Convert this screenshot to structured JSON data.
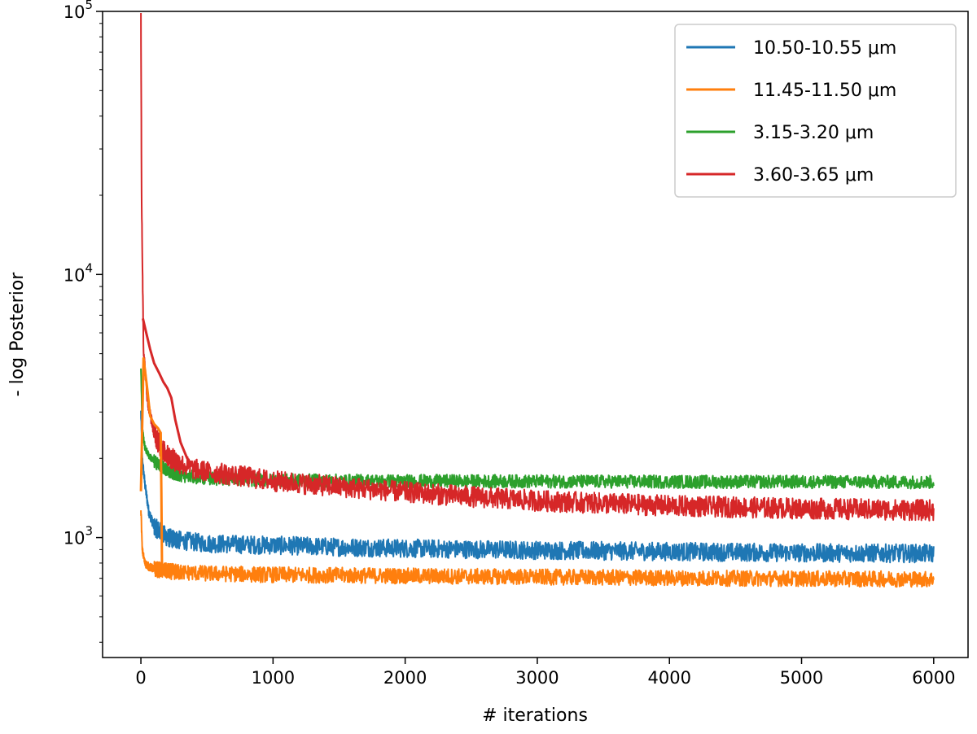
{
  "chart_data": {
    "type": "line",
    "xlabel": "# iterations",
    "ylabel": "- log Posterior",
    "xlim": [
      -290,
      6260
    ],
    "ylim": [
      350,
      100000
    ],
    "yscale": "log",
    "grid": false,
    "legend_position": "top-right",
    "x_ticks": [
      {
        "value": 0,
        "label": "0"
      },
      {
        "value": 1000,
        "label": "1000"
      },
      {
        "value": 2000,
        "label": "2000"
      },
      {
        "value": 3000,
        "label": "3000"
      },
      {
        "value": 4000,
        "label": "4000"
      },
      {
        "value": 5000,
        "label": "5000"
      },
      {
        "value": 6000,
        "label": "6000"
      }
    ],
    "y_ticks": [
      {
        "value": 1000,
        "base": "10",
        "exp": "3"
      },
      {
        "value": 10000,
        "base": "10",
        "exp": "4"
      },
      {
        "value": 100000,
        "base": "10",
        "exp": "5"
      }
    ],
    "series": [
      {
        "name": "10.50-10.55 μm",
        "color": "#1f77b4",
        "noise": 0.035,
        "x": [
          0,
          10,
          30,
          60,
          100,
          150,
          200,
          300,
          500,
          800,
          1000,
          1500,
          2000,
          3000,
          4000,
          5000,
          6000
        ],
        "y": [
          3000,
          2000,
          1600,
          1250,
          1100,
          1050,
          1000,
          975,
          950,
          940,
          935,
          920,
          910,
          895,
          885,
          875,
          870
        ]
      },
      {
        "name": "11.45-11.50 μm",
        "color": "#ff7f0e",
        "noise": 0.03,
        "x": [
          0,
          10,
          30,
          60,
          100,
          150,
          200,
          300,
          500,
          1000,
          2000,
          3000,
          4000,
          5000,
          6000
        ],
        "y": [
          1300,
          900,
          800,
          775,
          760,
          752,
          745,
          738,
          730,
          722,
          715,
          708,
          702,
          698,
          695
        ]
      },
      {
        "name": "3.15-3.20 μm",
        "color": "#2ca02c",
        "noise": 0.025,
        "x": [
          0,
          10,
          30,
          60,
          100,
          200,
          300,
          500,
          800,
          1000,
          2000,
          3000,
          4000,
          5000,
          6000
        ],
        "y": [
          4500,
          2600,
          2200,
          2050,
          1950,
          1800,
          1720,
          1680,
          1660,
          1650,
          1640,
          1635,
          1630,
          1628,
          1625
        ]
      },
      {
        "name": "3.60-3.65 μm",
        "color": "#d62728",
        "noise": 0.04,
        "x": [
          0,
          5,
          20,
          50,
          100,
          150,
          200,
          300,
          400,
          500,
          800,
          1000,
          1500,
          2000,
          2500,
          3000,
          4000,
          5000,
          6000
        ],
        "y": [
          100000,
          20000,
          5200,
          3300,
          2500,
          2200,
          2050,
          1900,
          1820,
          1780,
          1700,
          1640,
          1560,
          1490,
          1430,
          1380,
          1320,
          1290,
          1270
        ]
      }
    ],
    "transients": [
      {
        "color": "#ff7f0e",
        "x": [
          0,
          20,
          50,
          70,
          100,
          130,
          150,
          155,
          160
        ],
        "y": [
          1500,
          4800,
          3600,
          2900,
          2700,
          2600,
          2500,
          1500,
          760
        ]
      },
      {
        "color": "#d62728",
        "x": [
          15,
          40,
          70,
          100,
          140,
          170,
          200,
          230,
          260,
          300,
          350,
          400
        ],
        "y": [
          6800,
          6000,
          5200,
          4600,
          4200,
          3900,
          3700,
          3400,
          2800,
          2300,
          2000,
          1850
        ]
      }
    ]
  }
}
